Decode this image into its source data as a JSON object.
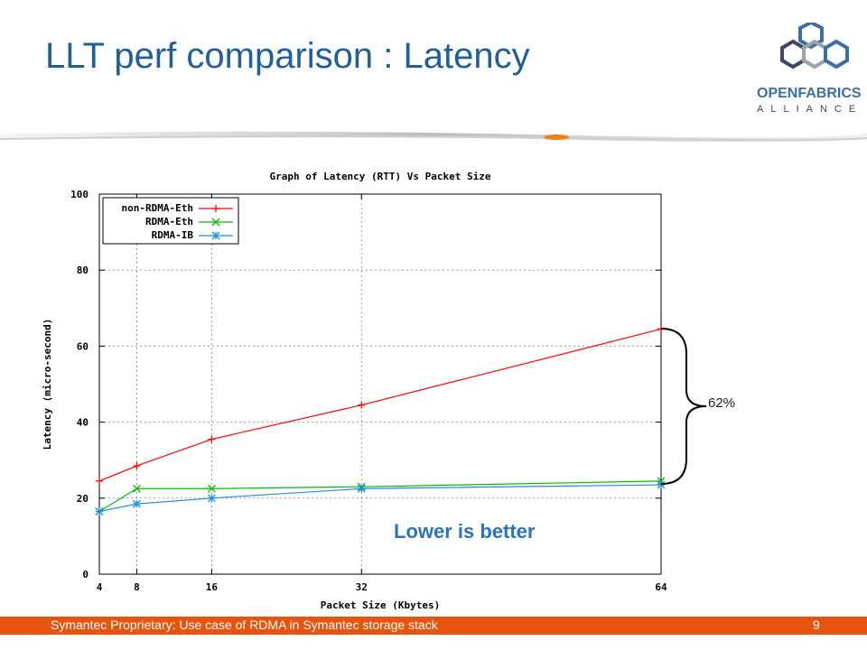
{
  "slide": {
    "title": "LLT perf comparison : Latency",
    "footer_text": "Symantec Proprietary: Use case of RDMA in Symantec storage stack",
    "page_number": "9",
    "accent_color": "#e8540d",
    "title_color": "#1f5f9c"
  },
  "logo": {
    "word1": "OPENFABRICS",
    "word2": "ALLIANCE"
  },
  "annotations": {
    "diff_label": "62%",
    "lower_is_better": "Lower is better"
  },
  "chart_data": {
    "type": "line",
    "title": "Graph of Latency (RTT) Vs Packet Size",
    "xlabel": "Packet Size (Kbytes)",
    "ylabel": "Latency (micro-second)",
    "x": [
      4,
      8,
      16,
      32,
      64
    ],
    "xticks": [
      "4",
      "8",
      "16",
      "32",
      "64"
    ],
    "yticks": [
      "0",
      "20",
      "40",
      "60",
      "80",
      "100"
    ],
    "xlim": [
      4,
      64
    ],
    "ylim": [
      0,
      100
    ],
    "grid": true,
    "legend_position": "top-left",
    "series": [
      {
        "name": "non-RDMA-Eth",
        "color": "#ff0000",
        "marker": "+",
        "values": [
          24.5,
          28.5,
          35.5,
          44.5,
          64.5
        ]
      },
      {
        "name": "RDMA-Eth",
        "color": "#00bb00",
        "marker": "x",
        "values": [
          16.5,
          22.5,
          22.5,
          23.0,
          24.5
        ]
      },
      {
        "name": "RDMA-IB",
        "color": "#1f8fe0",
        "marker": "*",
        "values": [
          16.5,
          18.5,
          20.0,
          22.5,
          23.5
        ]
      }
    ]
  }
}
